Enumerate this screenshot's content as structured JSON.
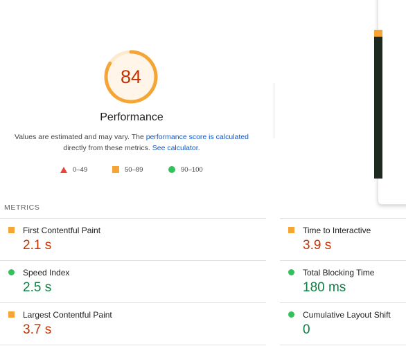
{
  "score": {
    "value": "84",
    "fraction": 0.84,
    "color": "#f4a535"
  },
  "category_title": "Performance",
  "description": {
    "text_before": "Values are estimated and may vary. The ",
    "link1": "performance score is calculated",
    "text_middle": " directly from these metrics. ",
    "link2": "See calculator."
  },
  "legend": [
    {
      "icon": "triangle-icon",
      "label": "0–49",
      "color": "#ea4335"
    },
    {
      "icon": "square-icon",
      "label": "50–89",
      "color": "#f4a535"
    },
    {
      "icon": "circle-icon",
      "label": "90–100",
      "color": "#34c15d"
    }
  ],
  "metrics_header": "METRICS",
  "metrics": [
    {
      "name": "First Contentful Paint",
      "value": "2.1 s",
      "rating": "average"
    },
    {
      "name": "Time to Interactive",
      "value": "3.9 s",
      "rating": "average"
    },
    {
      "name": "Speed Index",
      "value": "2.5 s",
      "rating": "good"
    },
    {
      "name": "Total Blocking Time",
      "value": "180 ms",
      "rating": "good"
    },
    {
      "name": "Largest Contentful Paint",
      "value": "3.7 s",
      "rating": "average"
    },
    {
      "name": "Cumulative Layout Shift",
      "value": "0",
      "rating": "good"
    }
  ]
}
